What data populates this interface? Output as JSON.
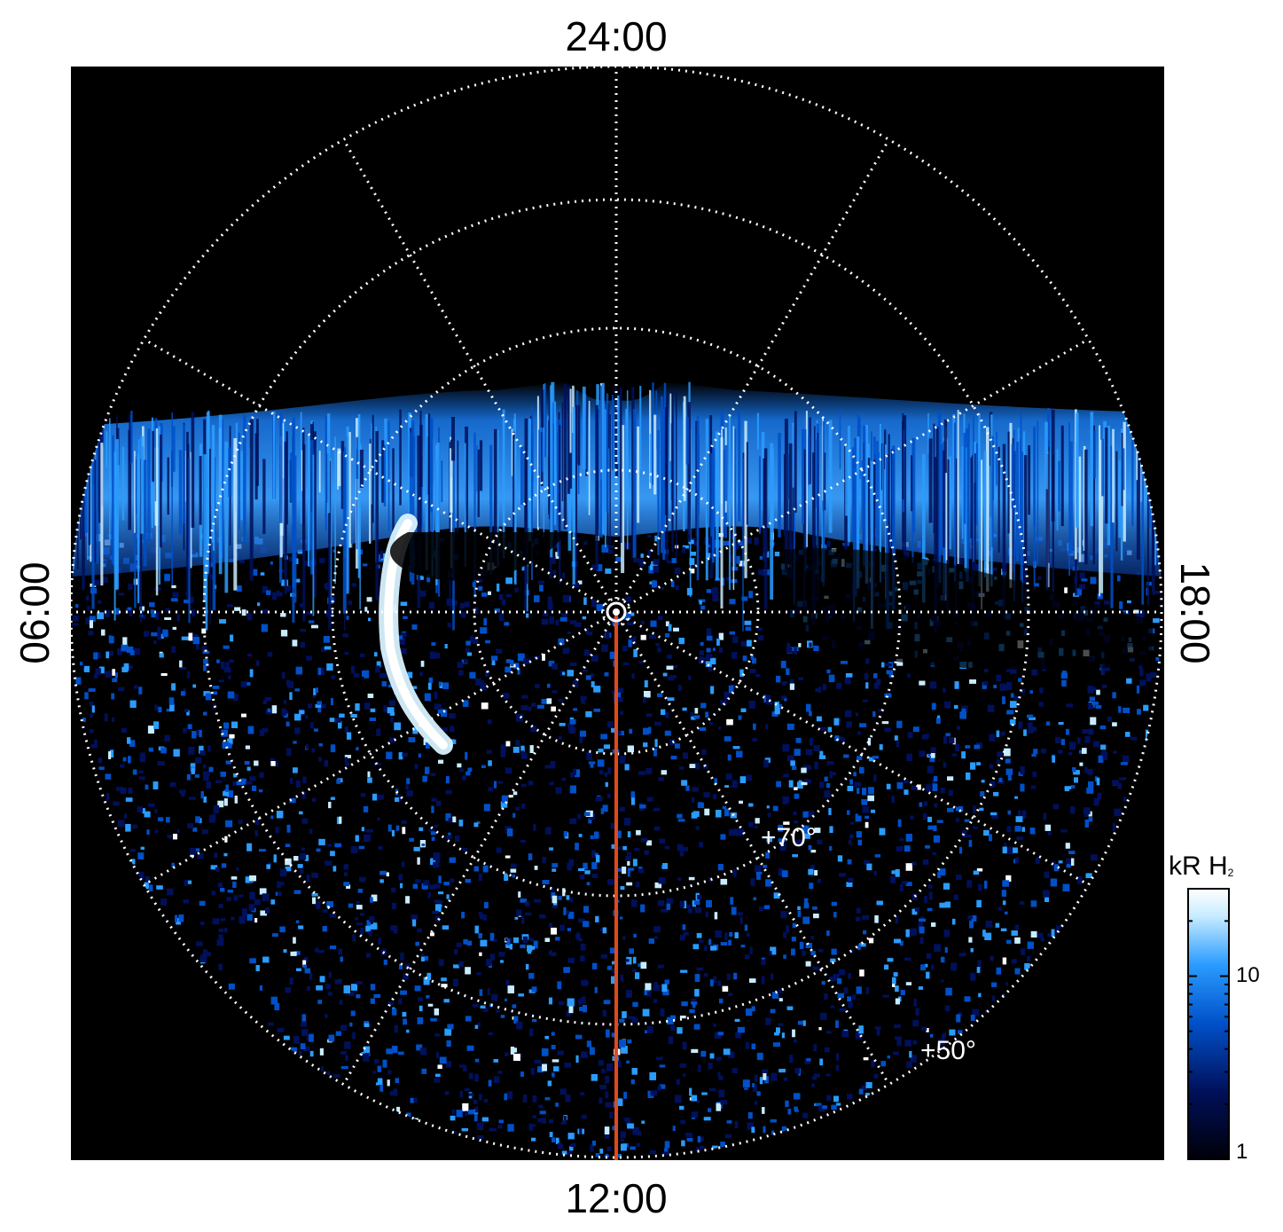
{
  "chart_data": {
    "type": "polar-heatmap",
    "projection": "polar, centered on pole",
    "local_time_labels": {
      "top": "24:00",
      "bottom": "12:00",
      "left": "06:00",
      "right": "18:00"
    },
    "latitude_labels": [
      "+70°",
      "+50°"
    ],
    "grid": true,
    "grid_style": "white dotted",
    "meridian_spacing_hours": 2,
    "colorbar": {
      "title": "kR H",
      "title_subscript": "2",
      "scale": "log",
      "tick_labels": [
        "1",
        "10"
      ],
      "colormap": [
        "#000008",
        "#00105a",
        "#0050c8",
        "#2a9cff",
        "#c8ecff",
        "#ffffff"
      ]
    },
    "highlight_line": {
      "color": "#e0491c",
      "from": "pole",
      "to": "12:00"
    },
    "features": [
      "bright auroral band across nightside",
      "bright arc near 06:00 side, dawn sector",
      "noisy low-intensity dayside"
    ]
  }
}
